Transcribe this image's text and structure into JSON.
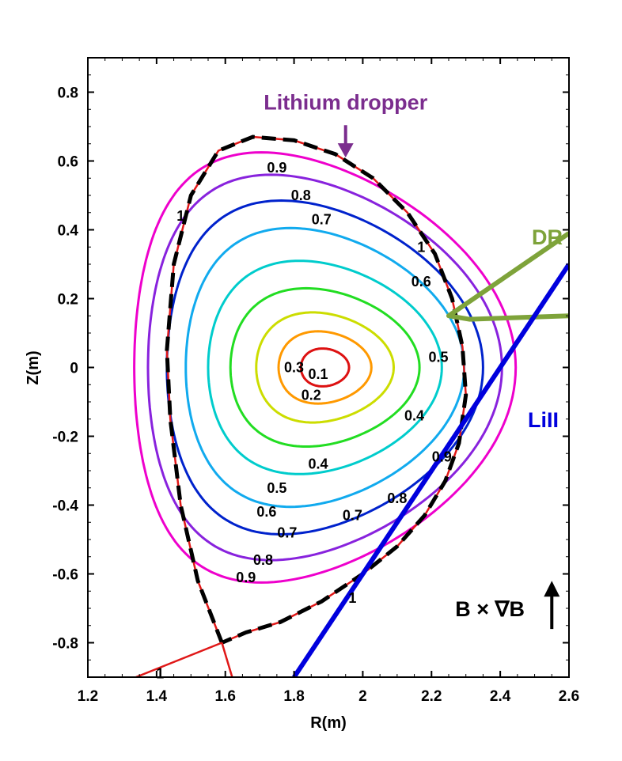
{
  "chart_data": {
    "type": "contour",
    "xlabel": "R(m)",
    "ylabel": "Z(m)",
    "xlim": [
      1.2,
      2.6
    ],
    "ylim": [
      -0.9,
      0.9
    ],
    "x_ticks": [
      "1.2",
      "1.4",
      "1.6",
      "1.8",
      "2",
      "2.2",
      "2.4",
      "2.6"
    ],
    "y_ticks": [
      "-0.8",
      "-0.6",
      "-0.4",
      "-0.2",
      "0",
      "0.2",
      "0.4",
      "0.6",
      "0.8"
    ],
    "grid": false,
    "magnetic_axis": {
      "R": 1.89,
      "Z": 0.0
    },
    "contours": [
      {
        "level": "0.1",
        "color": "#dd1111",
        "width_R": 0.14,
        "height_Z": 0.11,
        "triangularity": 0.1
      },
      {
        "level": "0.2",
        "color": "#ff9900",
        "width_R": 0.27,
        "height_Z": 0.21,
        "triangularity": 0.15
      },
      {
        "level": "0.3",
        "color": "#ccdd00",
        "width_R": 0.4,
        "height_Z": 0.32,
        "triangularity": 0.18
      },
      {
        "level": "0.4",
        "color": "#22dd22",
        "width_R": 0.55,
        "height_Z": 0.46,
        "triangularity": 0.2
      },
      {
        "level": "0.5",
        "color": "#00cccc",
        "width_R": 0.68,
        "height_Z": 0.62,
        "triangularity": 0.22
      },
      {
        "level": "0.6",
        "color": "#11aaee",
        "width_R": 0.81,
        "height_Z": 0.81,
        "triangularity": 0.25
      },
      {
        "level": "0.7",
        "color": "#0022cc",
        "width_R": 0.92,
        "height_Z": 0.97,
        "triangularity": 0.28
      },
      {
        "level": "0.8",
        "color": "#8822dd",
        "width_R": 1.03,
        "height_Z": 1.12,
        "triangularity": 0.31
      },
      {
        "level": "0.9",
        "color": "#ee00cc",
        "width_R": 1.11,
        "height_Z": 1.25,
        "triangularity": 0.34
      }
    ],
    "separatrix": {
      "level": "1",
      "line_color": "#e01818",
      "dash_color": "#000000",
      "x_point": {
        "R": 1.59,
        "Z": -0.8
      },
      "path_RZ": [
        [
          1.59,
          -0.8
        ],
        [
          1.52,
          -0.62
        ],
        [
          1.47,
          -0.4
        ],
        [
          1.44,
          -0.15
        ],
        [
          1.43,
          0.05
        ],
        [
          1.45,
          0.3
        ],
        [
          1.5,
          0.5
        ],
        [
          1.58,
          0.63
        ],
        [
          1.68,
          0.67
        ],
        [
          1.8,
          0.66
        ],
        [
          1.92,
          0.62
        ],
        [
          2.03,
          0.55
        ],
        [
          2.13,
          0.45
        ],
        [
          2.21,
          0.33
        ],
        [
          2.26,
          0.2
        ],
        [
          2.29,
          0.06
        ],
        [
          2.3,
          -0.08
        ],
        [
          2.28,
          -0.22
        ],
        [
          2.24,
          -0.33
        ],
        [
          2.18,
          -0.43
        ],
        [
          2.1,
          -0.52
        ],
        [
          2.0,
          -0.6
        ],
        [
          1.88,
          -0.68
        ],
        [
          1.76,
          -0.74
        ],
        [
          1.66,
          -0.77
        ],
        [
          1.59,
          -0.8
        ]
      ],
      "legs_RZ": [
        [
          [
            1.59,
            -0.8
          ],
          [
            1.34,
            -0.9
          ]
        ],
        [
          [
            1.59,
            -0.8
          ],
          [
            1.62,
            -0.9
          ]
        ]
      ],
      "labels": [
        {
          "text": "1",
          "R": 1.47,
          "Z": 0.44
        },
        {
          "text": "1",
          "R": 2.17,
          "Z": 0.35
        },
        {
          "text": "1",
          "R": 1.97,
          "Z": -0.67
        },
        {
          "text": "1",
          "R": 1.41,
          "Z": -0.89
        }
      ]
    },
    "contour_labels": [
      {
        "text": "0.9",
        "R": 1.75,
        "Z": 0.58
      },
      {
        "text": "0.8",
        "R": 1.82,
        "Z": 0.5
      },
      {
        "text": "0.7",
        "R": 1.88,
        "Z": 0.43
      },
      {
        "text": "0.6",
        "R": 2.17,
        "Z": 0.25
      },
      {
        "text": "0.5",
        "R": 2.22,
        "Z": 0.03
      },
      {
        "text": "0.4",
        "R": 2.15,
        "Z": -0.14
      },
      {
        "text": "0.3",
        "R": 1.8,
        "Z": 0.0
      },
      {
        "text": "0.1",
        "R": 1.87,
        "Z": -0.02
      },
      {
        "text": "0.2",
        "R": 1.85,
        "Z": -0.08
      },
      {
        "text": "0.4",
        "R": 1.87,
        "Z": -0.28
      },
      {
        "text": "0.5",
        "R": 1.75,
        "Z": -0.35
      },
      {
        "text": "0.6",
        "R": 1.72,
        "Z": -0.42
      },
      {
        "text": "0.7",
        "R": 1.78,
        "Z": -0.48
      },
      {
        "text": "0.7",
        "R": 1.97,
        "Z": -0.43
      },
      {
        "text": "0.8",
        "R": 2.1,
        "Z": -0.38
      },
      {
        "text": "0.8",
        "R": 1.71,
        "Z": -0.56
      },
      {
        "text": "0.9",
        "R": 1.66,
        "Z": -0.61
      },
      {
        "text": "0.9",
        "R": 2.23,
        "Z": -0.26
      }
    ],
    "annotations": {
      "lithium_dropper": {
        "text": "Lithium dropper",
        "color": "#7b2d8e",
        "R": 1.95,
        "Z": 0.75,
        "arrow_to": {
          "R": 1.95,
          "Z": 0.61
        }
      },
      "dr": {
        "text": "DR",
        "color": "#7ea33a",
        "R": 2.6,
        "Z": 0.38,
        "line_RZ": [
          [
            2.6,
            0.39
          ],
          [
            2.25,
            0.15
          ],
          [
            2.31,
            0.14
          ],
          [
            2.6,
            0.15
          ]
        ]
      },
      "lill": {
        "text": "LiII",
        "color": "#0000dd",
        "R": 2.57,
        "Z": -0.15,
        "line_RZ": [
          [
            1.8,
            -0.9
          ],
          [
            2.6,
            0.3
          ]
        ]
      },
      "bxgradb": {
        "text": "B × ∇B",
        "color": "#000000",
        "R": 2.37,
        "Z": -0.7,
        "arrow_from": {
          "R": 2.55,
          "Z": -0.76
        },
        "arrow_to": {
          "R": 2.55,
          "Z": -0.62
        }
      }
    }
  }
}
